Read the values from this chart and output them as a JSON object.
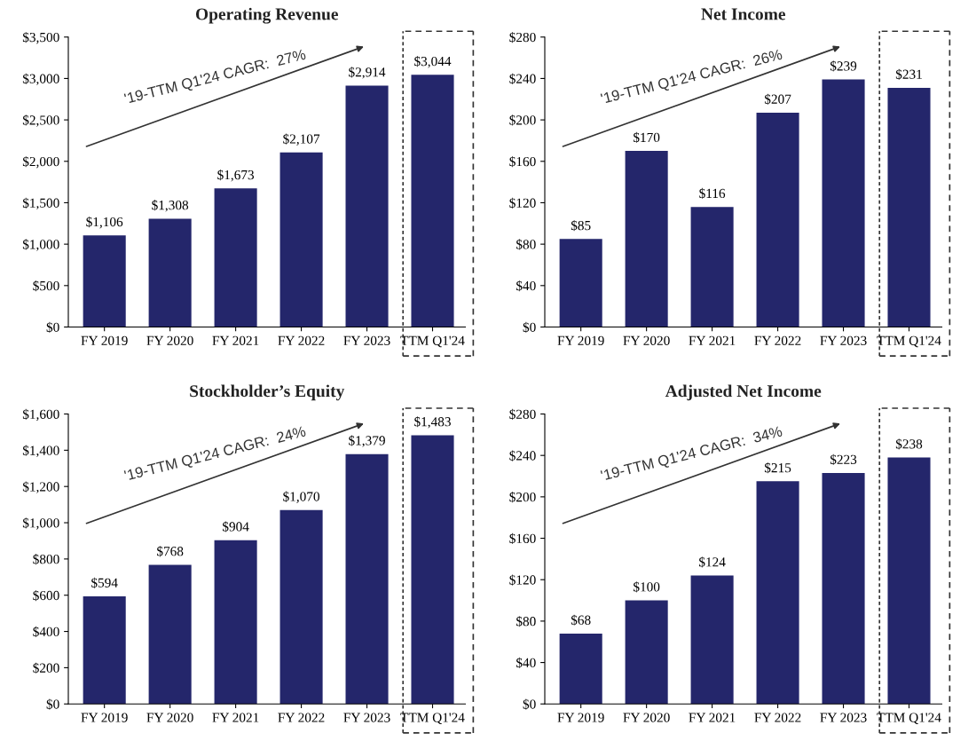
{
  "chart_data": [
    {
      "type": "bar",
      "title": "Operating Revenue",
      "categories": [
        "FY 2019",
        "FY 2020",
        "FY 2021",
        "FY 2022",
        "FY 2023",
        "TTM Q1'24"
      ],
      "values": [
        1106,
        1308,
        1673,
        2107,
        2914,
        3044
      ],
      "value_labels": [
        "$1,106",
        "$1,308",
        "$1,673",
        "$2,107",
        "$2,914",
        "$3,044"
      ],
      "color": "#24266b",
      "ylim": [
        0,
        3500
      ],
      "yticks": [
        {
          "value": 0,
          "label": "$0"
        },
        {
          "value": 500,
          "label": "$500"
        },
        {
          "value": 1000,
          "label": "$1,000"
        },
        {
          "value": 1500,
          "label": "$1,500"
        },
        {
          "value": 2000,
          "label": "$2,000"
        },
        {
          "value": 2500,
          "label": "$2,500"
        },
        {
          "value": 3000,
          "label": "$3,000"
        },
        {
          "value": 3500,
          "label": "$3,500"
        }
      ],
      "grid": false,
      "legend": false,
      "annotations": [
        "'19-TTM Q1'24 CAGR:  27%"
      ]
    },
    {
      "type": "bar",
      "title": "Net Income",
      "categories": [
        "FY 2019",
        "FY 2020",
        "FY 2021",
        "FY 2022",
        "FY 2023",
        "TTM Q1'24"
      ],
      "values": [
        85,
        170,
        116,
        207,
        239,
        231
      ],
      "value_labels": [
        "$85",
        "$170",
        "$116",
        "$207",
        "$239",
        "$231"
      ],
      "color": "#24266b",
      "ylim": [
        0,
        280
      ],
      "yticks": [
        {
          "value": 0,
          "label": "$0"
        },
        {
          "value": 40,
          "label": "$40"
        },
        {
          "value": 80,
          "label": "$80"
        },
        {
          "value": 120,
          "label": "$120"
        },
        {
          "value": 160,
          "label": "$160"
        },
        {
          "value": 200,
          "label": "$200"
        },
        {
          "value": 240,
          "label": "$240"
        },
        {
          "value": 280,
          "label": "$280"
        }
      ],
      "grid": false,
      "legend": false,
      "annotations": [
        "'19-TTM Q1'24 CAGR:  26%"
      ]
    },
    {
      "type": "bar",
      "title": "Stockholder’s Equity",
      "categories": [
        "FY 2019",
        "FY 2020",
        "FY 2021",
        "FY 2022",
        "FY 2023",
        "TTM Q1'24"
      ],
      "values": [
        594,
        768,
        904,
        1070,
        1379,
        1483
      ],
      "value_labels": [
        "$594",
        "$768",
        "$904",
        "$1,070",
        "$1,379",
        "$1,483"
      ],
      "color": "#24266b",
      "ylim": [
        0,
        1600
      ],
      "yticks": [
        {
          "value": 0,
          "label": "$0"
        },
        {
          "value": 200,
          "label": "$200"
        },
        {
          "value": 400,
          "label": "$400"
        },
        {
          "value": 600,
          "label": "$600"
        },
        {
          "value": 800,
          "label": "$800"
        },
        {
          "value": 1000,
          "label": "$1,000"
        },
        {
          "value": 1200,
          "label": "$1,200"
        },
        {
          "value": 1400,
          "label": "$1,400"
        },
        {
          "value": 1600,
          "label": "$1,600"
        }
      ],
      "grid": false,
      "legend": false,
      "annotations": [
        "'19-TTM Q1'24 CAGR:  24%"
      ]
    },
    {
      "type": "bar",
      "title": "Adjusted Net Income",
      "categories": [
        "FY 2019",
        "FY 2020",
        "FY 2021",
        "FY 2022",
        "FY 2023",
        "TTM Q1'24"
      ],
      "values": [
        68,
        100,
        124,
        215,
        223,
        238
      ],
      "value_labels": [
        "$68",
        "$100",
        "$124",
        "$215",
        "$223",
        "$238"
      ],
      "color": "#24266b",
      "ylim": [
        0,
        280
      ],
      "yticks": [
        {
          "value": 0,
          "label": "$0"
        },
        {
          "value": 40,
          "label": "$40"
        },
        {
          "value": 80,
          "label": "$80"
        },
        {
          "value": 120,
          "label": "$120"
        },
        {
          "value": 160,
          "label": "$160"
        },
        {
          "value": 200,
          "label": "$200"
        },
        {
          "value": 240,
          "label": "$240"
        },
        {
          "value": 280,
          "label": "$280"
        }
      ],
      "grid": false,
      "legend": false,
      "annotations": [
        "'19-TTM Q1'24 CAGR:  34%"
      ]
    }
  ]
}
